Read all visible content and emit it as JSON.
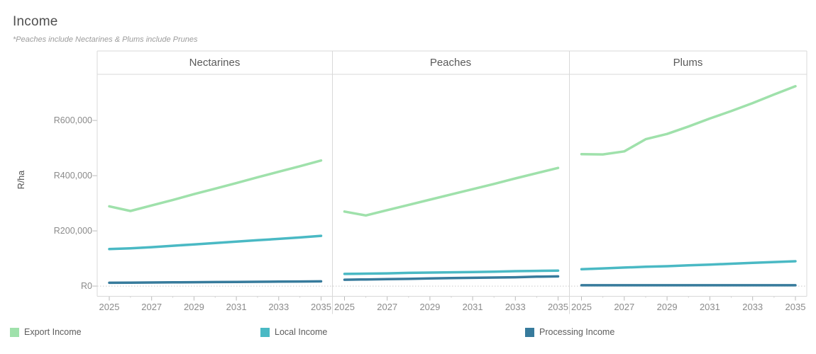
{
  "header": {
    "title": "Income",
    "subtitle": "*Peaches include Nectarines & Plums include Prunes"
  },
  "legend": {
    "items": [
      {
        "label": "Export Income",
        "color": "#9fe1ab"
      },
      {
        "label": "Local Income",
        "color": "#4ab9c4"
      },
      {
        "label": "Processing Income",
        "color": "#377b9c"
      }
    ]
  },
  "chart_data": {
    "type": "line",
    "title": "Income",
    "subtitle": "*Peaches include Nectarines & Plums include Prunes",
    "ylabel": "R/ha",
    "x": [
      2025,
      2026,
      2027,
      2028,
      2029,
      2030,
      2031,
      2032,
      2033,
      2034,
      2035
    ],
    "x_tick_labels": [
      "2025",
      "2027",
      "2029",
      "2031",
      "2033",
      "2035"
    ],
    "y_ticks": [
      {
        "value": 0,
        "label": "R0"
      },
      {
        "value": 200000,
        "label": "R200,000"
      },
      {
        "value": 400000,
        "label": "R400,000"
      },
      {
        "value": 600000,
        "label": "R600,000"
      }
    ],
    "ylim": [
      -37000,
      767000
    ],
    "grid": "zero-line-dotted",
    "legend_position": "bottom",
    "series_colors": {
      "Export Income": "#9fe1ab",
      "Local Income": "#4ab9c4",
      "Processing Income": "#377b9c"
    },
    "panels": [
      {
        "title": "Nectarines",
        "series": [
          {
            "name": "Export Income",
            "values": [
              289000,
              272000,
              292000,
              312000,
              333000,
              353000,
              373000,
              394000,
              414000,
              434000,
              455000
            ]
          },
          {
            "name": "Local Income",
            "values": [
              134000,
              137000,
              141000,
              146000,
              151000,
              156000,
              161000,
              166000,
              171000,
              176000,
              182000
            ]
          },
          {
            "name": "Processing Income",
            "values": [
              12000,
              12500,
              13000,
              13500,
              14000,
              14500,
              15000,
              15500,
              16000,
              16500,
              17000
            ]
          }
        ]
      },
      {
        "title": "Peaches",
        "series": [
          {
            "name": "Export Income",
            "values": [
              270000,
              256000,
              275000,
              294000,
              313000,
              332000,
              351000,
              370000,
              390000,
              409000,
              428000
            ]
          },
          {
            "name": "Local Income",
            "values": [
              44000,
              45000,
              46000,
              48000,
              49000,
              50000,
              51000,
              52000,
              54000,
              55000,
              56000
            ]
          },
          {
            "name": "Processing Income",
            "values": [
              23000,
              24000,
              25000,
              26000,
              28000,
              29000,
              30000,
              31000,
              32000,
              34000,
              35000
            ]
          }
        ]
      },
      {
        "title": "Plums",
        "series": [
          {
            "name": "Export Income",
            "values": [
              478000,
              477000,
              488000,
              532000,
              551000,
              578000,
              607000,
              634000,
              663000,
              694000,
              724000
            ]
          },
          {
            "name": "Local Income",
            "values": [
              61000,
              64000,
              67000,
              70000,
              72000,
              75000,
              78000,
              81000,
              84000,
              87000,
              90000
            ]
          },
          {
            "name": "Processing Income",
            "values": [
              3000,
              3000,
              3000,
              3000,
              3000,
              3000,
              3000,
              3000,
              3000,
              3000,
              3000
            ]
          }
        ]
      }
    ]
  }
}
